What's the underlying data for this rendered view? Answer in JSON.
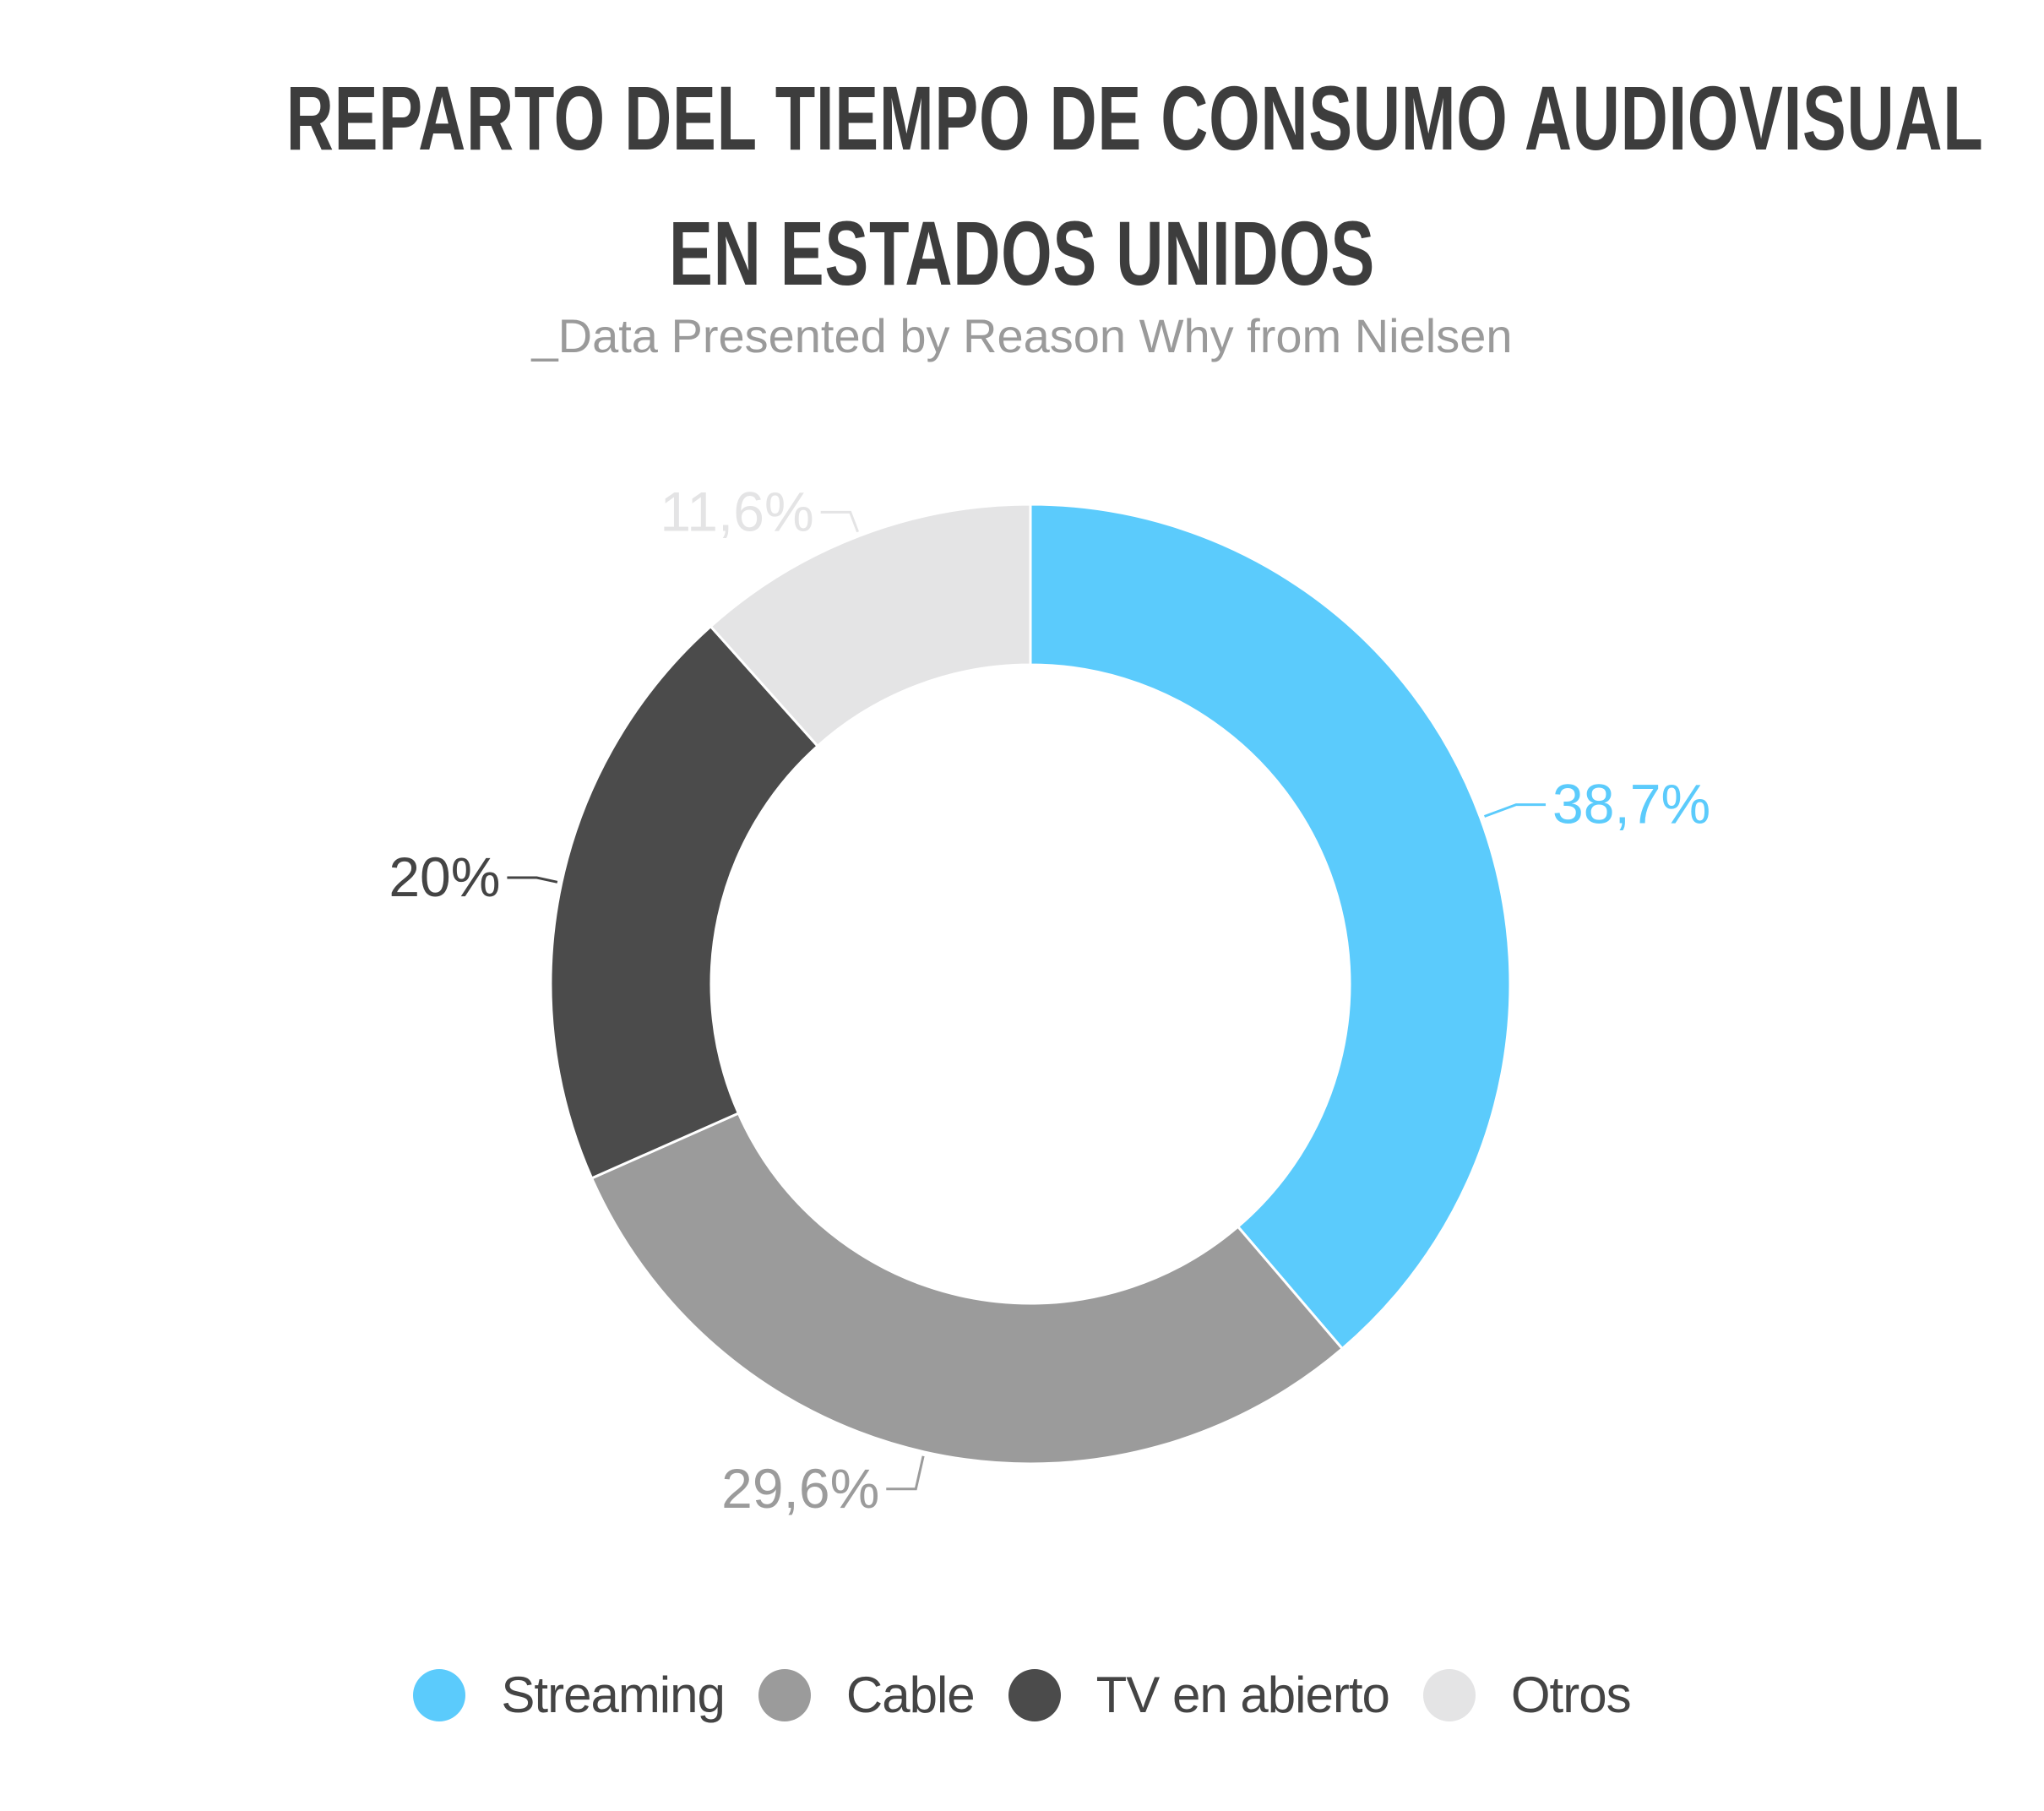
{
  "chart_data": {
    "type": "pie",
    "title_lines": [
      "REPARTO DEL TIEMPO DE CONSUMO AUDIOVISUAL",
      "EN ESTADOS UNIDOS"
    ],
    "subtitle": "_Data Presented by Reason Why from Nielsen",
    "slices": [
      {
        "name": "Streaming",
        "value": 38.7,
        "label": "38,7%",
        "color": "#5bcbfc",
        "label_color": "#5bcbfc"
      },
      {
        "name": "Cable",
        "value": 29.6,
        "label": "29,6%",
        "color": "#9b9b9b",
        "label_color": "#9b9b9b"
      },
      {
        "name": "TV en abierto",
        "value": 20,
        "label": "20%",
        "color": "#4b4b4b",
        "label_color": "#444444"
      },
      {
        "name": "Otros",
        "value": 11.6,
        "label": "11,6%",
        "color": "#e4e4e5",
        "label_color": "#e4e4e5"
      }
    ],
    "legend_position": "bottom",
    "donut": true
  }
}
